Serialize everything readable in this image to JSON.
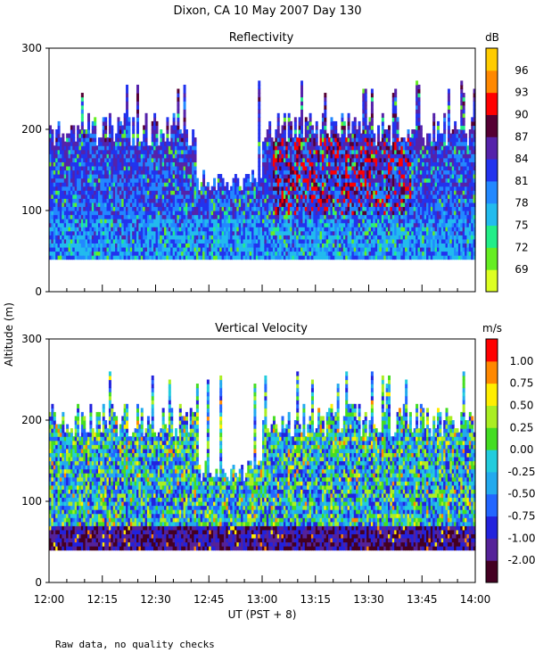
{
  "page_title": "Dixon, CA 10 May 2007  Day 130",
  "shared_ylabel": "Altitude (m)",
  "footnote": "Raw data, no quality checks",
  "chart_data": [
    {
      "type": "heatmap",
      "title": "Reflectivity",
      "colorbar_unit": "dB",
      "ylim": [
        0,
        300
      ],
      "y_ticks": [
        "0",
        "100",
        "200",
        "300"
      ],
      "colorbar_ticks": [
        "69",
        "72",
        "75",
        "78",
        "81",
        "84",
        "87",
        "90",
        "93",
        "96"
      ],
      "colorbar_colors": [
        "#ddff22",
        "#66ee22",
        "#22ee88",
        "#22bbee",
        "#2288ff",
        "#2233ee",
        "#5522aa",
        "#550033",
        "#ff0000",
        "#ff8800",
        "#ffcc00"
      ]
    },
    {
      "type": "heatmap",
      "title": "Vertical Velocity",
      "colorbar_unit": "m/s",
      "ylim": [
        0,
        300
      ],
      "y_ticks": [
        "0",
        "100",
        "200",
        "300"
      ],
      "colorbar_ticks": [
        "-2.00",
        "-1.00",
        "-0.75",
        "-0.50",
        "-0.25",
        "0.00",
        "0.25",
        "0.50",
        "0.75",
        "1.00"
      ],
      "colorbar_colors": [
        "#440022",
        "#552299",
        "#2222dd",
        "#2266ff",
        "#22aaee",
        "#22ccdd",
        "#44dd22",
        "#aaee22",
        "#ffee00",
        "#ff8800",
        "#ff0000"
      ],
      "x_ticks": [
        "12:00",
        "12:15",
        "12:30",
        "12:45",
        "13:00",
        "13:15",
        "13:30",
        "13:45",
        "14:00"
      ],
      "xlabel": "UT   (PST + 8)"
    }
  ]
}
